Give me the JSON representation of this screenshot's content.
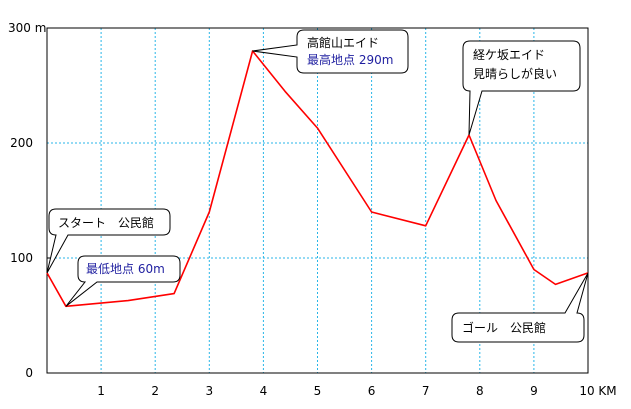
{
  "chart_data": {
    "type": "line",
    "title": "",
    "xlabel": "",
    "ylabel": "",
    "xlim": [
      0,
      10
    ],
    "ylim": [
      0,
      300
    ],
    "grid": true,
    "x_ticks": [
      1,
      2,
      3,
      4,
      5,
      6,
      7,
      8,
      9,
      10
    ],
    "x_tick_labels": [
      "1",
      "2",
      "3",
      "4",
      "5",
      "6",
      "7",
      "8",
      "9",
      "10 KM"
    ],
    "y_ticks": [
      0,
      100,
      200,
      300
    ],
    "y_tick_labels": [
      "0",
      "100",
      "200",
      "300 m"
    ],
    "series": [
      {
        "color": "#ff0000",
        "x": [
          0,
          0.35,
          1.5,
          2.35,
          3.0,
          3.8,
          4.4,
          5.0,
          6.0,
          7.0,
          7.8,
          8.3,
          9.0,
          9.4,
          10.0
        ],
        "y": [
          87,
          58,
          63,
          69,
          140,
          280,
          245,
          213,
          140,
          128,
          207,
          150,
          90,
          77,
          87
        ]
      }
    ],
    "annotations": [
      {
        "lines": [
          "スタート　公民館"
        ],
        "style": [
          "black"
        ],
        "point": [
          0,
          87
        ]
      },
      {
        "lines": [
          "最低地点 60m"
        ],
        "style": [
          "blue"
        ],
        "point": [
          0.35,
          58
        ]
      },
      {
        "lines": [
          "高館山エイド",
          "最高地点 290m"
        ],
        "style": [
          "black",
          "blue"
        ],
        "point": [
          3.8,
          280
        ]
      },
      {
        "lines": [
          "経ケ坂エイド",
          "見晴らしが良い"
        ],
        "style": [
          "black",
          "black"
        ],
        "point": [
          7.8,
          207
        ]
      },
      {
        "lines": [
          "ゴール　公民館"
        ],
        "style": [
          "black"
        ],
        "point": [
          10.0,
          87
        ]
      }
    ]
  }
}
